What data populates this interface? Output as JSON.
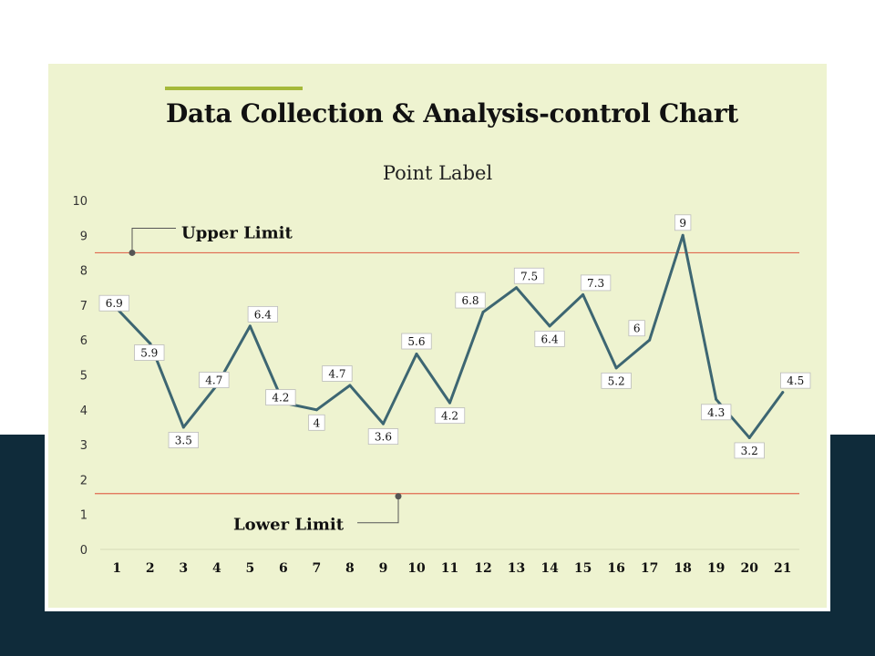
{
  "page": {
    "title": "Data Collection & Analysis-control Chart",
    "colors": {
      "background_top": "#ffffff",
      "background_bottom": "#0f2b3a",
      "card": "#eef3d0",
      "accent_bar": "#a5b93a",
      "line": "#3d6672",
      "limit_line": "#e06a50"
    }
  },
  "chart_data": {
    "type": "line",
    "title": "Point Label",
    "xlabel": "",
    "ylabel": "",
    "x": [
      1,
      2,
      3,
      4,
      5,
      6,
      7,
      8,
      9,
      10,
      11,
      12,
      13,
      14,
      15,
      16,
      17,
      18,
      19,
      20,
      21
    ],
    "values": [
      6.9,
      5.9,
      3.5,
      4.7,
      6.4,
      4.2,
      4,
      4.7,
      3.6,
      5.6,
      4.2,
      6.8,
      7.5,
      6.4,
      7.3,
      5.2,
      6,
      9,
      4.3,
      3.2,
      4.5
    ],
    "data_labels": [
      "6.9",
      "5.9",
      "3.5",
      "4.7",
      "6.4",
      "4.2",
      "4",
      "4.7",
      "3.6",
      "5.6",
      "4.2",
      "6.8",
      "7.5",
      "6.4",
      "7.3",
      "5.2",
      "6",
      "9",
      "4.3",
      "3.2",
      "4.5"
    ],
    "ylim": [
      0,
      10
    ],
    "yticks": [
      0,
      1,
      2,
      3,
      4,
      5,
      6,
      7,
      8,
      9,
      10
    ],
    "grid": false,
    "upper_limit": {
      "label": "Upper Limit",
      "value": 8.5
    },
    "lower_limit": {
      "label": "Lower Limit",
      "value": 1.6
    }
  }
}
